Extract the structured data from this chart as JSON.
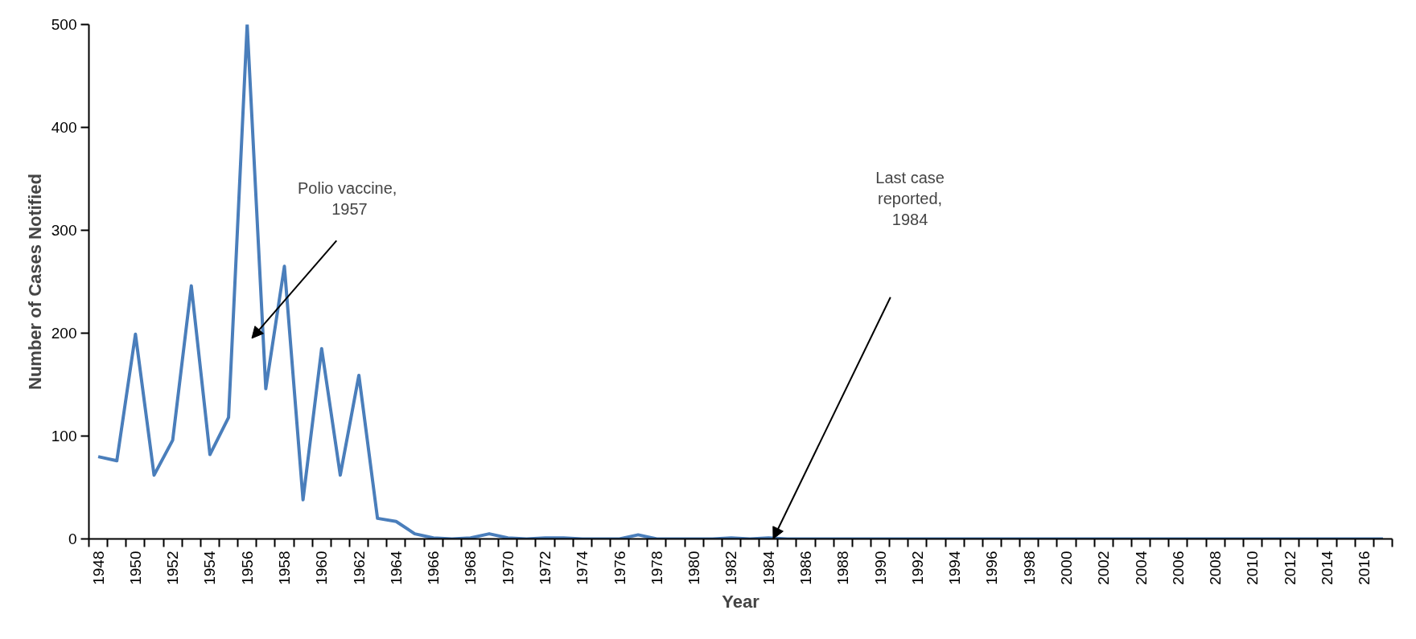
{
  "chart_data": {
    "type": "line",
    "xlabel": "Year",
    "ylabel": "Number of Cases Notified",
    "categories": [
      "1948",
      null,
      "1950",
      null,
      "1952",
      null,
      "1954",
      null,
      "1956",
      null,
      "1958",
      null,
      "1960",
      null,
      "1962",
      null,
      "1964",
      null,
      "1966",
      null,
      "1968",
      null,
      "1970",
      null,
      "1972",
      null,
      "1974",
      null,
      "1976",
      null,
      "1978",
      null,
      "1980",
      null,
      "1982",
      null,
      "1984",
      null,
      "1986",
      null,
      "1988",
      null,
      "1990",
      null,
      "1992",
      null,
      "1994",
      null,
      "1996",
      null,
      "1998",
      null,
      "2000",
      null,
      "2002",
      null,
      "2004",
      null,
      "2006",
      null,
      "2008",
      null,
      "2010",
      null,
      "2012",
      null,
      "2014",
      null,
      "2016",
      null
    ],
    "series": [
      {
        "color": "#4a7ebb",
        "values": [
          80,
          76,
          199,
          62,
          96,
          246,
          82,
          118,
          500,
          146,
          265,
          38,
          185,
          62,
          159,
          20,
          17,
          5,
          1,
          0,
          1,
          5,
          1,
          0,
          1,
          1,
          0,
          0,
          0,
          4,
          0,
          0,
          0,
          0,
          1,
          0,
          1,
          0,
          0,
          0,
          0,
          0,
          0,
          0,
          0,
          0,
          0,
          0,
          0,
          0,
          0,
          0,
          0,
          0,
          0,
          0,
          0,
          0,
          0,
          0,
          0,
          0,
          0,
          0,
          0,
          0,
          0,
          0,
          0,
          0
        ]
      }
    ],
    "ylim": [
      0,
      500
    ],
    "yticks": [
      0,
      100,
      200,
      300,
      400,
      500
    ],
    "grid": false,
    "marker": "none",
    "line_style": "solid",
    "annotations": [
      "Polio  vaccine,\n1957",
      "Last case\nreported,\n1984"
    ]
  }
}
